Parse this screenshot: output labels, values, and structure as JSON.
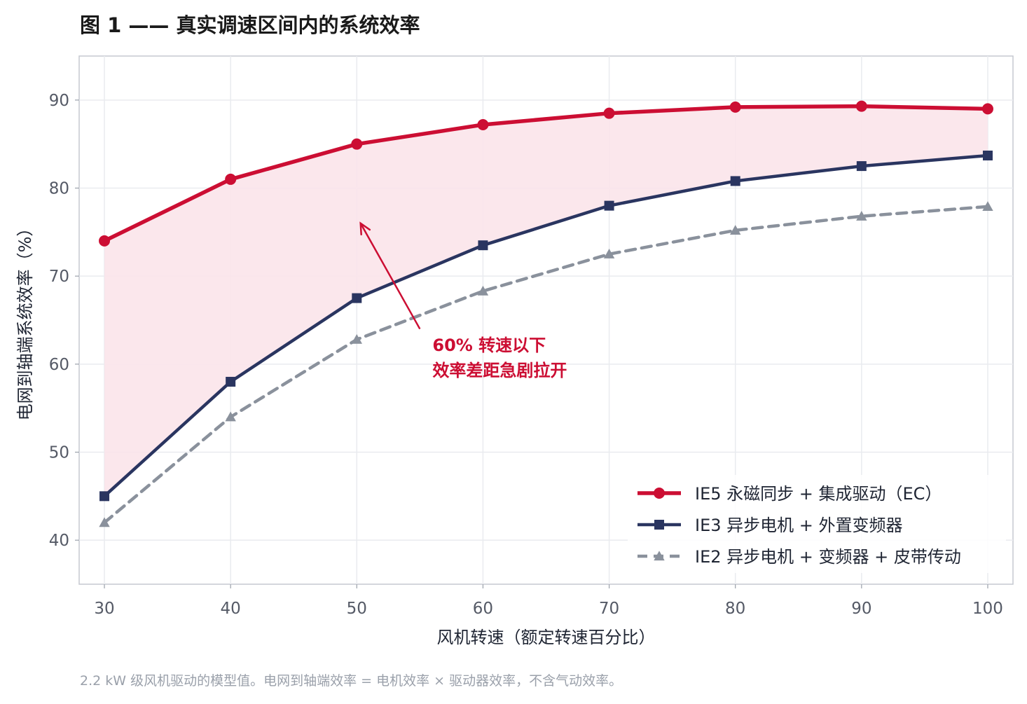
{
  "colors": {
    "ie5": "#cc0e33",
    "ie3": "#2a3560",
    "ie2": "#8a919c",
    "fill": "#fbe4ea",
    "grid": "#e9ebef",
    "frame": "#c5c8d0"
  },
  "chart_data": {
    "type": "line",
    "title": "图 1 —— 真实调速区间内的系统效率",
    "xlabel": "风机转速（额定转速百分比）",
    "ylabel": "电网到轴端系统效率（%）",
    "x": [
      30,
      40,
      50,
      60,
      70,
      80,
      90,
      100
    ],
    "xlim": [
      28,
      102
    ],
    "ylim": [
      35,
      95
    ],
    "xticks": [
      "30",
      "40",
      "50",
      "60",
      "70",
      "80",
      "90",
      "100"
    ],
    "yticks": [
      "40",
      "50",
      "60",
      "70",
      "80",
      "90"
    ],
    "grid": true,
    "legend_position": "lower-right",
    "series": [
      {
        "name": "IE5 永磁同步 + 集成驱动（EC）",
        "marker": "circle",
        "line": "solid",
        "values": [
          74.0,
          81.0,
          85.0,
          87.2,
          88.5,
          89.2,
          89.3,
          89.0
        ]
      },
      {
        "name": "IE3 异步电机 + 外置变频器",
        "marker": "square",
        "line": "solid",
        "values": [
          45.0,
          58.0,
          67.5,
          73.5,
          78.0,
          80.8,
          82.5,
          83.7
        ]
      },
      {
        "name": "IE2 异步电机 + 变频器 + 皮带传动",
        "marker": "triangle",
        "line": "dashed",
        "values": [
          42.0,
          54.0,
          62.8,
          68.3,
          72.5,
          75.2,
          76.8,
          77.9
        ]
      }
    ],
    "annotation": {
      "line1": "60% 转速以下",
      "line2": "效率差距急剧拉开",
      "arrow_from": {
        "x": 55,
        "y": 64
      },
      "arrow_to": {
        "x": 50.3,
        "y": 76
      },
      "text_at": {
        "x": 56,
        "y": 61.5
      }
    },
    "note": "2.2 kW 级风机驱动的模型值。电网到轴端效率 = 电机效率 × 驱动器效率，不含气动效率。"
  }
}
